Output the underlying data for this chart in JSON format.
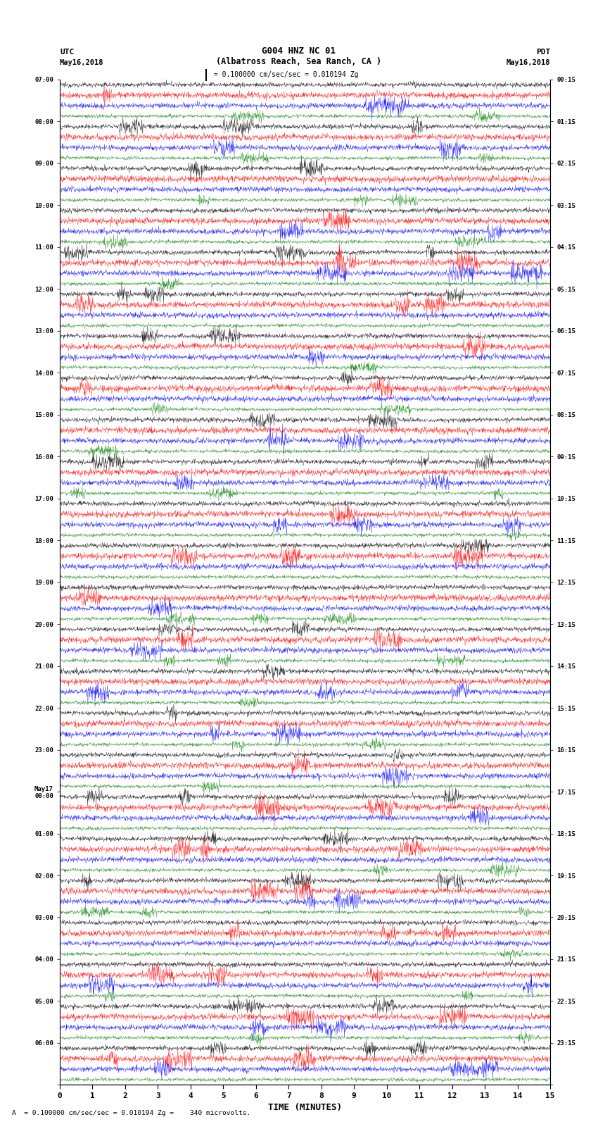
{
  "title_line1": "G004 HNZ NC 01",
  "title_line2": "(Albatross Reach, Sea Ranch, CA )",
  "left_label": "UTC",
  "left_date": "May16,2018",
  "right_label": "PDT",
  "right_date": "May16,2018",
  "scale_text": " = 0.100000 cm/sec/sec = 0.010194 Zg",
  "bottom_text": "A  = 0.100000 cm/sec/sec = 0.010194 Zg =    340 microvolts.",
  "xlabel": "TIME (MINUTES)",
  "utc_hour_labels": [
    "07:00",
    "08:00",
    "09:00",
    "10:00",
    "11:00",
    "12:00",
    "13:00",
    "14:00",
    "15:00",
    "16:00",
    "17:00",
    "18:00",
    "19:00",
    "20:00",
    "21:00",
    "22:00",
    "23:00",
    "May17\n00:00",
    "01:00",
    "02:00",
    "03:00",
    "04:00",
    "05:00",
    "06:00"
  ],
  "pdt_hour_labels": [
    "00:15",
    "01:15",
    "02:15",
    "03:15",
    "04:15",
    "05:15",
    "06:15",
    "07:15",
    "08:15",
    "09:15",
    "10:15",
    "11:15",
    "12:15",
    "13:15",
    "14:15",
    "15:15",
    "16:15",
    "17:15",
    "18:15",
    "19:15",
    "20:15",
    "21:15",
    "22:15",
    "23:15"
  ],
  "n_hours": 24,
  "traces_per_hour": 4,
  "colors": [
    "black",
    "red",
    "blue",
    "green"
  ],
  "xlim": [
    0,
    15
  ],
  "xticks": [
    0,
    1,
    2,
    3,
    4,
    5,
    6,
    7,
    8,
    9,
    10,
    11,
    12,
    13,
    14,
    15
  ],
  "background_color": "white",
  "noise_scale": [
    0.3,
    0.4,
    0.35,
    0.22
  ],
  "fig_width": 8.5,
  "fig_height": 16.13,
  "dpi": 100
}
